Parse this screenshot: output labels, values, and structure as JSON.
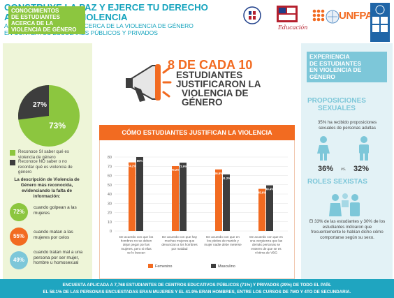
{
  "header": {
    "title_line1": "CONSTRUYE LA PAZ Y EJERCE TU DERECHO",
    "title_line2": "A UNA VIDA SIN VIOLENCIA",
    "subtitle_line1": "ACTITUDES Y PRÁCTICAS ACERCA DE LA VIOLENCIA DE GÉNERO",
    "subtitle_line2": "EN CONTEXTOS ESCOLARES PÚBLICOS Y PRIVADOS",
    "logo_mined_word": "Educación",
    "logo_unfpa_word": "UNFPA"
  },
  "left_panel": {
    "title_lines": [
      "CONOCIMIENTOS",
      "DE ESTUDIANTES",
      "ACERCA DE LA",
      "VIOLENCIA DE GÉNERO"
    ],
    "donut": {
      "no_pct_label": "27%",
      "yes_pct_label": "73%",
      "yes_fraction": 0.73
    },
    "legend": [
      {
        "text": "Reconoce SI saber qué es violencia de género",
        "color": "#8cc63f"
      },
      {
        "text": "Reconoce NO saber o no recordar qué es violencia de género",
        "color": "#3d3d3d"
      }
    ],
    "description": "La descripción de Violencia de Género más reconocida, evidenciando la falta de información:",
    "items": [
      {
        "pct": "72%",
        "text": "cuando golpean a las mujeres",
        "color": "#8cc63f"
      },
      {
        "pct": "55%",
        "text": "cuando matan a las mujeres por celos",
        "color": "#f26b21"
      },
      {
        "pct": "49%",
        "text": "cuando tratan mal a una persona por ser mujer, hombre u homosexual",
        "color": "#7dc7d9"
      }
    ]
  },
  "headline": {
    "line1": "8 DE CADA 10",
    "line2": "ESTUDIANTES",
    "line3": "JUSTIFICARON LA",
    "line4": "VIOLENCIA DE",
    "line5": "GÉNERO"
  },
  "chart_data": {
    "type": "bar",
    "title": "CÓMO ESTUDIANTES JUSTIFICAN LA VIOLENCIA",
    "categories": [
      "De acuerdo con que los hombres no se deben dejar pegar por las mujeres, pero si ellas se lo buscan",
      "De acuerdo con que hay muchas mujeres que denuncian a los hombres por maldad",
      "De acuerdo con que en los pleitos de marido y mujer nadie debe meterse",
      "De acuerdo con que es una vergüenza que las demás personas se enteren de que se es víctima de VBG"
    ],
    "series": [
      {
        "name": "Femenino",
        "color": "#f26b21",
        "values": [
          74.2,
          70.2,
          66.6,
          45.6
        ],
        "labels": [
          "74.2%",
          "70.2%",
          "66.6%",
          "45.6%"
        ]
      },
      {
        "name": "Masculino",
        "color": "#3d3d3d",
        "values": [
          80,
          73.9,
          61.2,
          49.4
        ],
        "labels": [
          "80%",
          "73.9%",
          "61.2%",
          "49.4%"
        ]
      }
    ],
    "ylim": [
      0,
      80
    ],
    "yticks": [
      "0",
      "10",
      "20",
      "30",
      "40",
      "50",
      "60",
      "70",
      "80"
    ],
    "grid": true,
    "legend_position": "bottom"
  },
  "right_panel": {
    "title_lines": [
      "EXPERIENCIA",
      "DE ESTUDIANTES",
      "EN VIOLENCIA DE",
      "GÉNERO"
    ],
    "sub1": "PROPOSICIONES",
    "sub1b": "SEXUALES",
    "sub1_text": "35% ha recibido proposiciones sexuales de personas adultas",
    "female_pct": "36%",
    "male_pct": "32%",
    "vs": "vs.",
    "sub2": "ROLES SEXISTAS",
    "sub2_text": "El 33% de las estudiantes y 30% de los estudiantes indicaron que frecuentemente le habían dicho cómo comportarse según su sexo."
  },
  "footer": {
    "line1": "ENCUESTA APLICADA A 7,768 ESTUDIANTES DE CENTROS EDUCATIVOS PÚBLICOS (71%) Y PRIVADOS (29%) DE TODO EL PAÍS.",
    "line2": "EL 58.1% DE LAS PERSONAS ENCUESTADAS ERAN MUJERES Y EL 41.9% ERAN HOMBRES, ENTRE LOS CURSOS DE 7MO Y 4TO DE SECUNDARIA."
  }
}
